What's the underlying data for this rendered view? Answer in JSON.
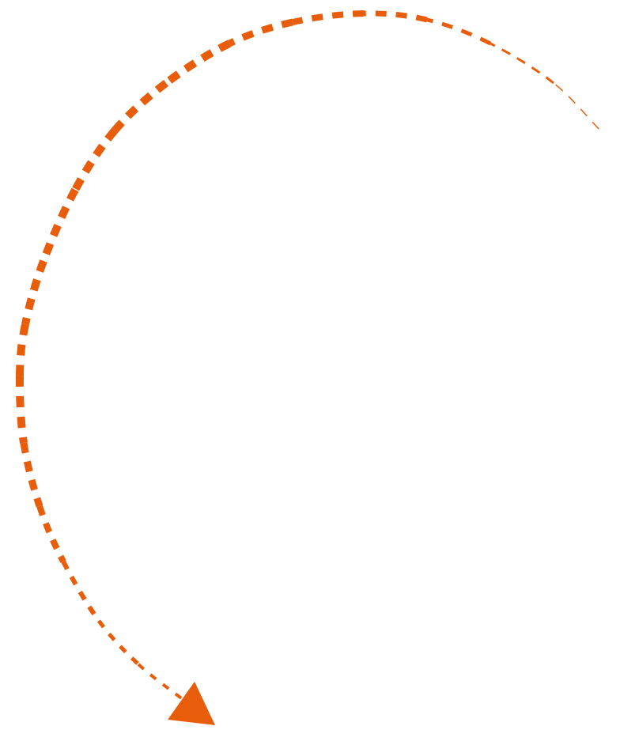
{
  "graphic": {
    "type": "dashed-curved-arrow",
    "direction": "counter-clockwise",
    "color": "#E85D0C"
  }
}
